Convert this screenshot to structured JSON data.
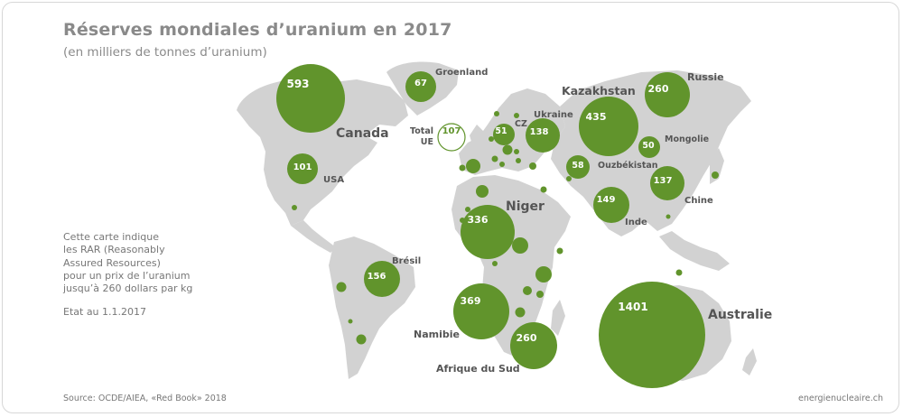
{
  "title": "Réserves mondiales d’uranium en 2017",
  "subtitle": "(en milliers de tonnes d’uranium)",
  "note": {
    "lines": [
      "Cette carte indique",
      "les RAR (Reasonably",
      "Assured Resources)",
      "pour un prix de l’uranium",
      "jusqu’à 260 dollars par kg"
    ],
    "date": "Etat au 1.1.2017"
  },
  "source": "Source: OCDE/AIEA, «Red Book» 2018",
  "site": "energienucleaire.ch",
  "colors": {
    "bubble": "#61942c",
    "land": "#d2d2d2",
    "text": "#8a8a8a"
  },
  "map_data": {
    "unit": "milliers de tonnes d’uranium",
    "countries": [
      {
        "name": "Canada",
        "value": 593
      },
      {
        "name": "Groenland",
        "value": 67
      },
      {
        "name": "Total UE",
        "value": 107
      },
      {
        "name": "Kazakhstan",
        "value": 435
      },
      {
        "name": "Russie",
        "value": 260
      },
      {
        "name": "USA",
        "value": 101
      },
      {
        "name": "CZ",
        "value": 51
      },
      {
        "name": "Ukraine",
        "value": 138
      },
      {
        "name": "Mongolie",
        "value": 50
      },
      {
        "name": "Ouzbékistan",
        "value": 58
      },
      {
        "name": "Chine",
        "value": 137
      },
      {
        "name": "Inde",
        "value": 149
      },
      {
        "name": "Niger",
        "value": 336
      },
      {
        "name": "Brésil",
        "value": 156
      },
      {
        "name": "Namibie",
        "value": 369
      },
      {
        "name": "Afrique du Sud",
        "value": 260
      },
      {
        "name": "Australie",
        "value": 1401
      }
    ]
  }
}
